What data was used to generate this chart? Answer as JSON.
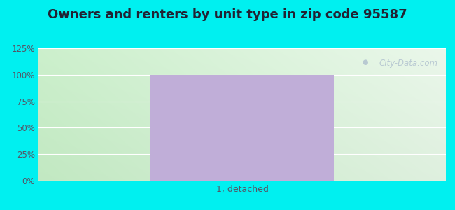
{
  "title": "Owners and renters by unit type in zip code 95587",
  "title_fontsize": 13,
  "categories": [
    "1, detached"
  ],
  "bar_values": [
    100
  ],
  "bar_color": "#c0aed8",
  "ylim": [
    0,
    125
  ],
  "yticks": [
    0,
    25,
    50,
    75,
    100,
    125
  ],
  "yticklabels": [
    "0%",
    "25%",
    "50%",
    "75%",
    "100%",
    "125%"
  ],
  "bg_outer_color": "#00f0f0",
  "watermark_text": "City-Data.com",
  "bar_width": 0.45,
  "tick_color": "#555566",
  "label_color": "#555566"
}
